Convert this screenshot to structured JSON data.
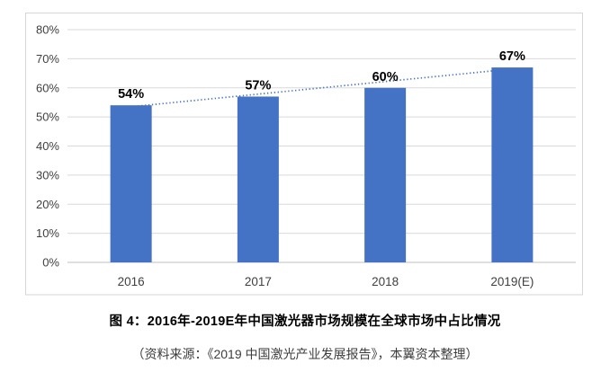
{
  "figure": {
    "caption": "图 4：2016年-2019E年中国激光器市场规模在全球市场中占比情况",
    "source": "（资料来源：《2019 中国激光产业发展报告》，本翼资本整理）"
  },
  "chart_data": {
    "type": "bar",
    "title": "",
    "categories": [
      "2016",
      "2017",
      "2018",
      "2019(E)"
    ],
    "values": [
      54,
      57,
      60,
      67
    ],
    "value_labels": [
      "54%",
      "57%",
      "60%",
      "67%"
    ],
    "xlabel": "",
    "ylabel": "",
    "ylim": [
      0,
      80
    ],
    "ytick_step": 10,
    "ytick_labels": [
      "0%",
      "10%",
      "20%",
      "30%",
      "40%",
      "50%",
      "60%",
      "70%",
      "80%"
    ],
    "grid": true,
    "legend": false,
    "trendline": {
      "type": "linear",
      "style": "dotted",
      "start_value": 53.5,
      "end_value": 66.5
    },
    "colors": {
      "bar": "#4472C4",
      "trendline": "#4472C4",
      "gridline": "#D9D9D9",
      "axis_line": "#BFBFBF",
      "frame_border": "#D6D6D6",
      "tick_text": "#404040",
      "value_label_text": "#000000",
      "background": "#FFFFFF"
    }
  }
}
